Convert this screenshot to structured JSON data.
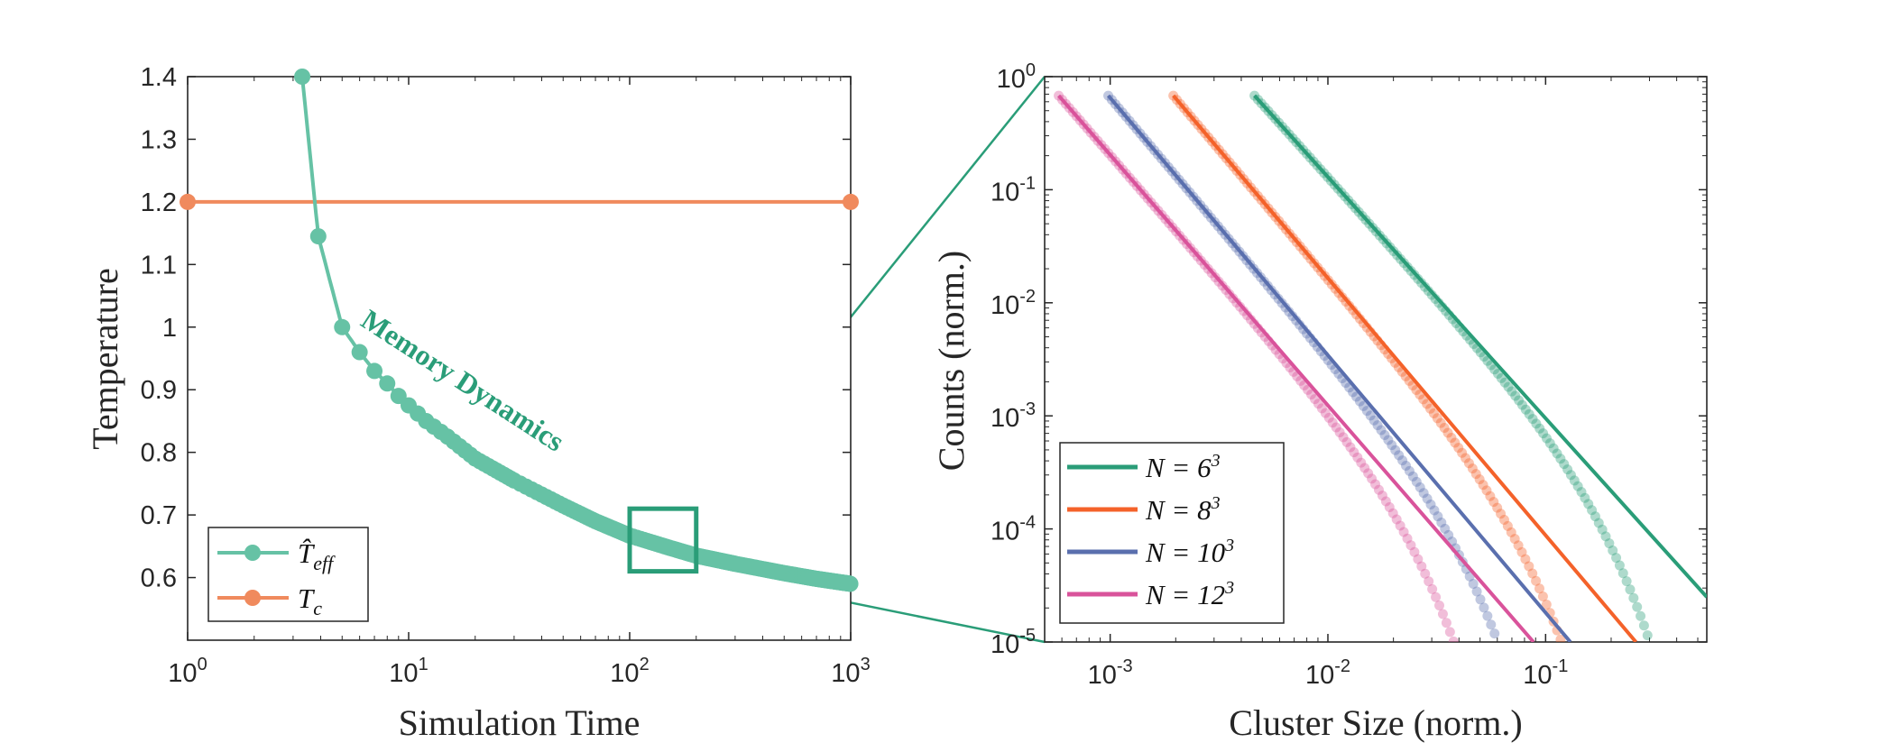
{
  "chart_data": [
    {
      "type": "line",
      "xlabel": "Simulation Time",
      "ylabel": "Temperature",
      "xscale": "log",
      "xlim": [
        1,
        1000
      ],
      "ylim": [
        0.5,
        1.4
      ],
      "xticks": [
        1,
        10,
        100,
        1000
      ],
      "xtick_labels": [
        {
          "base": "10",
          "exp": "0"
        },
        {
          "base": "10",
          "exp": "1"
        },
        {
          "base": "10",
          "exp": "2"
        },
        {
          "base": "10",
          "exp": "3"
        }
      ],
      "yticks": [
        0.6,
        0.7,
        0.8,
        0.9,
        1.0,
        1.1,
        1.2,
        1.3,
        1.4
      ],
      "ytick_labels": [
        "0.6",
        "0.7",
        "0.8",
        "0.9",
        "1",
        "1.1",
        "1.2",
        "1.3",
        "1.4"
      ],
      "grid": false,
      "legend_position": "bottom-left",
      "annotation": "Memory Dynamics",
      "zoom_box": {
        "x": [
          100,
          200
        ],
        "y": [
          0.61,
          0.71
        ]
      },
      "series": [
        {
          "name": "T̂_eff",
          "legend_main": "T̂",
          "legend_sub": "eff",
          "color": "#66c2a5",
          "x": [
            3.3,
            3.9,
            5,
            6,
            7,
            8,
            9,
            10,
            12,
            15,
            20,
            30,
            50,
            70,
            100,
            150,
            200,
            300,
            500,
            700,
            1000
          ],
          "y": [
            1.4,
            1.145,
            1.0,
            0.96,
            0.93,
            0.91,
            0.89,
            0.875,
            0.85,
            0.825,
            0.79,
            0.755,
            0.715,
            0.69,
            0.667,
            0.648,
            0.635,
            0.622,
            0.607,
            0.598,
            0.59
          ]
        },
        {
          "name": "T_c",
          "legend_main": "T",
          "legend_sub": "c",
          "color": "#f08a5d",
          "x": [
            1,
            1000
          ],
          "y": [
            1.2,
            1.2
          ]
        }
      ]
    },
    {
      "type": "scatter",
      "xlabel": "Cluster Size (norm.)",
      "ylabel": "Counts (norm.)",
      "xscale": "log",
      "yscale": "log",
      "xlim": [
        0.0005,
        0.55
      ],
      "ylim": [
        1e-05,
        1
      ],
      "xticks": [
        0.001,
        0.01,
        0.1
      ],
      "xtick_labels": [
        {
          "base": "10",
          "exp": "-3"
        },
        {
          "base": "10",
          "exp": "-2"
        },
        {
          "base": "10",
          "exp": "-1"
        }
      ],
      "yticks": [
        1e-05,
        0.0001,
        0.001,
        0.01,
        0.1,
        1
      ],
      "ytick_labels": [
        {
          "base": "10",
          "exp": "-5"
        },
        {
          "base": "10",
          "exp": "-4"
        },
        {
          "base": "10",
          "exp": "-3"
        },
        {
          "base": "10",
          "exp": "-2"
        },
        {
          "base": "10",
          "exp": "-1"
        },
        {
          "base": "10",
          "exp": "0"
        }
      ],
      "grid": false,
      "legend_position": "bottom-left",
      "series": [
        {
          "name": "N = 6^3",
          "legend_text": "N = 6",
          "legend_exp": "3",
          "color": "#2a9d78",
          "x_min": 0.0046,
          "x_cutoff": 0.38,
          "fit_x": [
            0.0046,
            0.55
          ],
          "fit_y": [
            0.68,
            2.5e-05
          ]
        },
        {
          "name": "N = 8^3",
          "legend_text": "N = 8",
          "legend_exp": "3",
          "color": "#f4622a",
          "x_min": 0.00195,
          "x_cutoff": 0.17,
          "fit_x": [
            0.00195,
            0.26
          ],
          "fit_y": [
            0.68,
            1e-05
          ]
        },
        {
          "name": "N = 10^3",
          "legend_text": "N = 10",
          "legend_exp": "3",
          "color": "#5a6fae",
          "x_min": 0.00098,
          "x_cutoff": 0.088,
          "fit_x": [
            0.00098,
            0.13
          ],
          "fit_y": [
            0.68,
            1e-05
          ]
        },
        {
          "name": "N = 12^3",
          "legend_text": "N = 12",
          "legend_exp": "3",
          "color": "#d9539b",
          "x_min": 0.00058,
          "x_cutoff": 0.053,
          "fit_x": [
            0.00058,
            0.088
          ],
          "fit_y": [
            0.68,
            1e-05
          ]
        }
      ]
    }
  ]
}
